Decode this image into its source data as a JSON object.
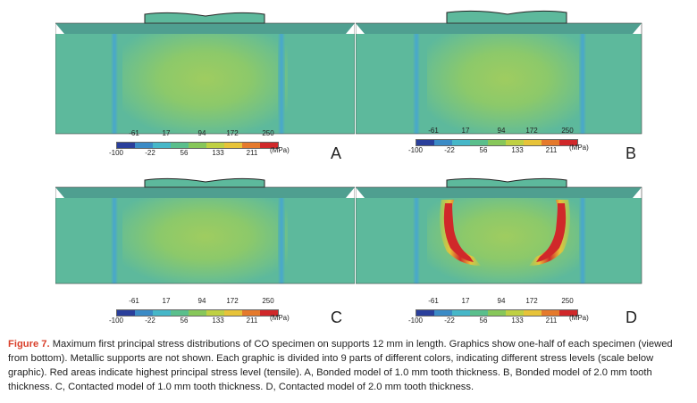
{
  "scale": {
    "top_ticks": [
      "-61",
      "17",
      "94",
      "172",
      "250"
    ],
    "bottom_ticks": [
      "-100",
      "-22",
      "56",
      "133",
      "211"
    ],
    "unit": "(MPa)",
    "colors": [
      "#2a3f9b",
      "#3b8bc6",
      "#46b7c8",
      "#5abf8c",
      "#87c75a",
      "#bfd043",
      "#e7c339",
      "#e57a2c",
      "#d0282a"
    ]
  },
  "panels": [
    {
      "letter": "A"
    },
    {
      "letter": "B"
    },
    {
      "letter": "C"
    },
    {
      "letter": "D"
    }
  ],
  "caption": {
    "label": "Figure 7.",
    "text": " Maximum first principal stress distributions of CO specimen on supports 12 mm in length. Graphics show one-half of each specimen (viewed from bottom). Metallic supports are not shown. Each graphic is divided into 9 parts of different colors, indicating different stress levels (scale below graphic). Red areas indicate highest principal stress level (tensile). A, Bonded model of 1.0 mm tooth thickness. B, Bonded model of 2.0 mm tooth thickness. C, Contacted model of 1.0 mm tooth thickness. D, Contacted model of 2.0 mm tooth thickness."
  }
}
